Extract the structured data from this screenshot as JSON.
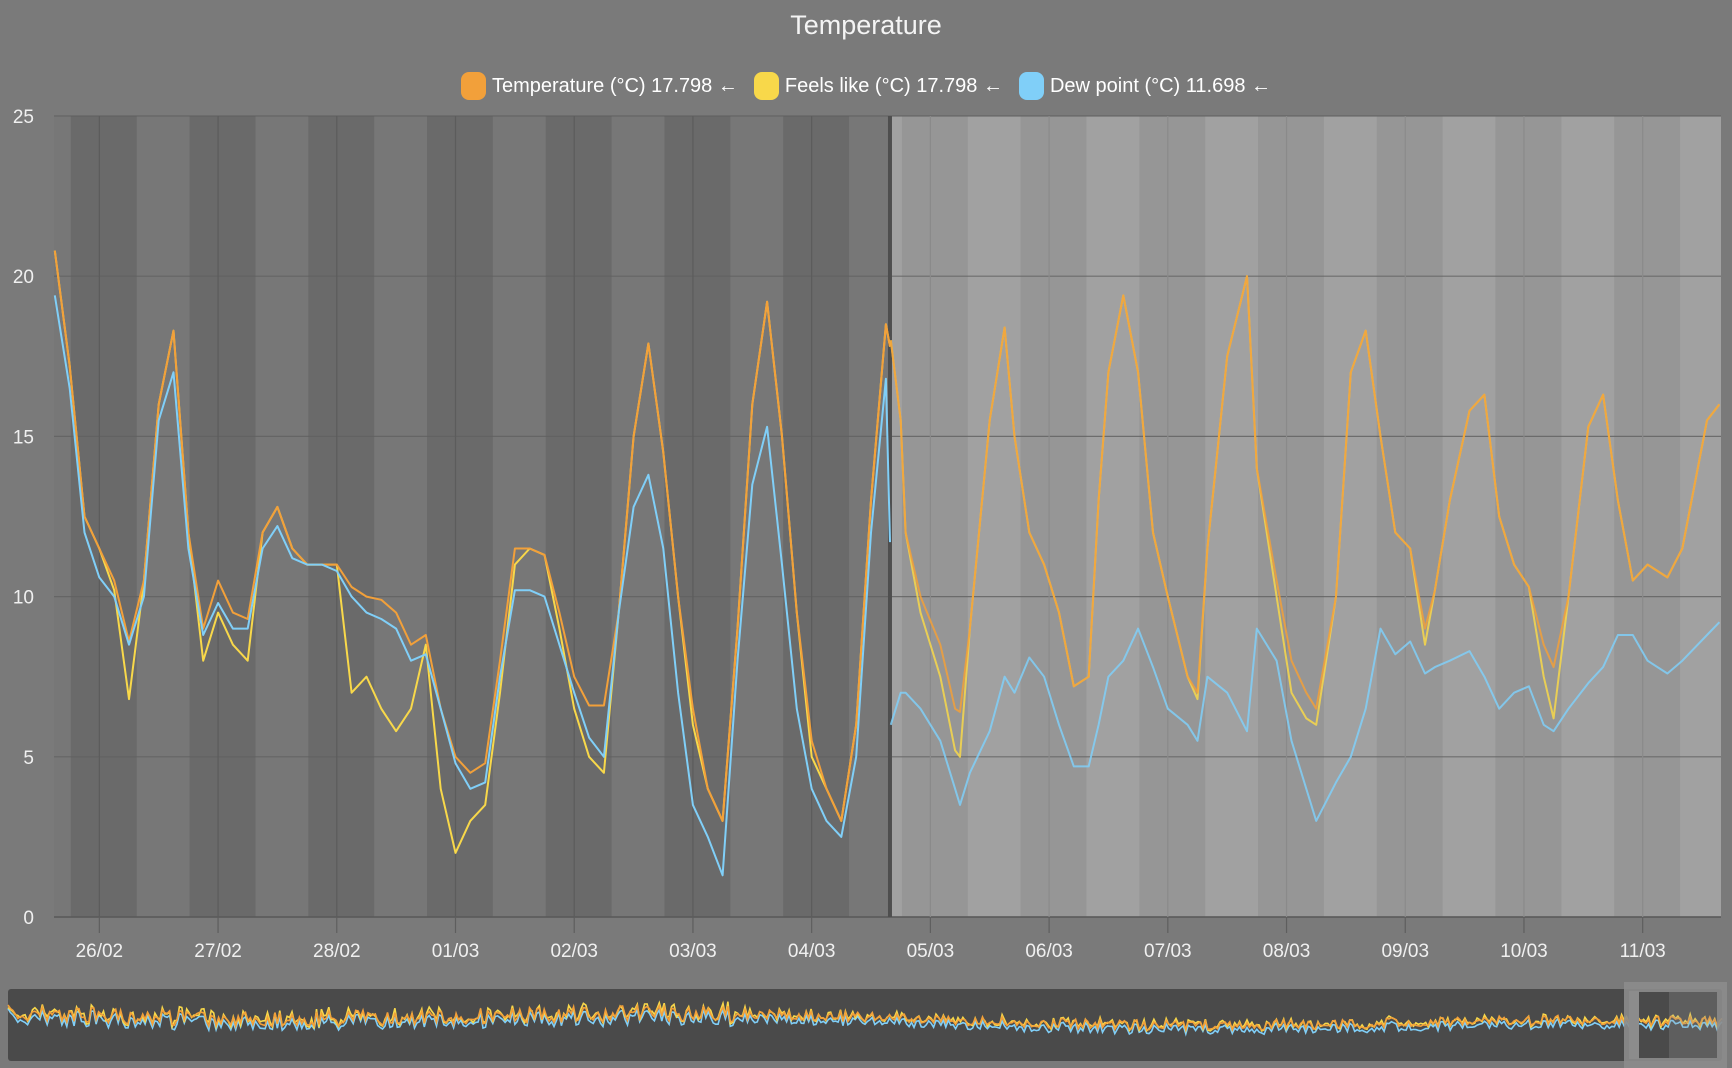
{
  "title": "Temperature",
  "legend": [
    {
      "label": "Temperature (°C) 17.798 ←",
      "color": "#f2a03a"
    },
    {
      "label": "Feels like (°C) 17.798 ←",
      "color": "#f8d84a"
    },
    {
      "label": "Dew point (°C) 11.698 ←",
      "color": "#80cff8"
    }
  ],
  "colors": {
    "background": "#7a7a7a",
    "past_day": "#777777",
    "past_night": "#6a6a6a",
    "forecast_day": "#a1a1a1",
    "forecast_night": "#969696",
    "now_line": "#4e4e4e",
    "navigator_bg": "#4a4a4a",
    "navigator_window": "#8c8c8c"
  },
  "chart_data": {
    "type": "line",
    "title": "Temperature",
    "ylim": [
      0,
      25
    ],
    "yticks": [
      "0",
      "5",
      "10",
      "15",
      "20",
      "25"
    ],
    "xlim": [
      "25/02 14:50",
      "11/03 15:50"
    ],
    "xticks": [
      "26/02",
      "27/02",
      "28/02",
      "01/03",
      "02/03",
      "03/03",
      "04/03",
      "05/03",
      "06/03",
      "07/03",
      "08/03",
      "09/03",
      "10/03",
      "11/03"
    ],
    "now": "04/03 15:50",
    "night_shading": true,
    "grid": true,
    "series_names": [
      "Temperature (°C)",
      "Feels like (°C)",
      "Dew point (°C)"
    ],
    "observed": [
      [
        "25/02 15:00",
        20.8,
        20.8,
        19.4
      ],
      [
        "25/02 18:00",
        17.2,
        17.2,
        16.5
      ],
      [
        "25/02 21:00",
        12.5,
        12.5,
        12.0
      ],
      [
        "26/02 00:00",
        11.5,
        11.5,
        10.6
      ],
      [
        "26/02 03:00",
        10.5,
        10.2,
        10.0
      ],
      [
        "26/02 06:00",
        8.6,
        6.8,
        8.5
      ],
      [
        "26/02 09:00",
        10.5,
        10.5,
        10.0
      ],
      [
        "26/02 12:00",
        16.0,
        16.0,
        15.5
      ],
      [
        "26/02 15:00",
        18.3,
        18.3,
        17.0
      ],
      [
        "26/02 18:00",
        12.0,
        12.0,
        11.5
      ],
      [
        "26/02 21:00",
        9.0,
        8.0,
        8.8
      ],
      [
        "27/02 00:00",
        10.5,
        9.5,
        9.8
      ],
      [
        "27/02 03:00",
        9.5,
        8.5,
        9.0
      ],
      [
        "27/02 06:00",
        9.3,
        8.0,
        9.0
      ],
      [
        "27/02 09:00",
        12.0,
        12.0,
        11.5
      ],
      [
        "27/02 12:00",
        12.8,
        12.8,
        12.2
      ],
      [
        "27/02 15:00",
        11.5,
        11.5,
        11.2
      ],
      [
        "27/02 18:00",
        11.0,
        11.0,
        11.0
      ],
      [
        "27/02 21:00",
        11.0,
        11.0,
        11.0
      ],
      [
        "28/02 00:00",
        11.0,
        11.0,
        10.8
      ],
      [
        "28/02 03:00",
        10.3,
        7.0,
        10.0
      ],
      [
        "28/02 06:00",
        10.0,
        7.5,
        9.5
      ],
      [
        "28/02 09:00",
        9.9,
        6.5,
        9.3
      ],
      [
        "28/02 12:00",
        9.5,
        5.8,
        9.0
      ],
      [
        "28/02 15:00",
        8.5,
        6.5,
        8.0
      ],
      [
        "28/02 18:00",
        8.8,
        8.5,
        8.2
      ],
      [
        "28/02 21:00",
        6.5,
        4.0,
        6.5
      ],
      [
        "01/03 00:00",
        5.0,
        2.0,
        4.8
      ],
      [
        "01/03 03:00",
        4.5,
        3.0,
        4.0
      ],
      [
        "01/03 06:00",
        4.8,
        3.5,
        4.2
      ],
      [
        "01/03 09:00",
        8.0,
        7.0,
        7.5
      ],
      [
        "01/03 12:00",
        11.5,
        11.0,
        10.2
      ],
      [
        "01/03 15:00",
        11.5,
        11.5,
        10.2
      ],
      [
        "01/03 18:00",
        11.3,
        11.3,
        10.0
      ],
      [
        "01/03 21:00",
        9.5,
        9.0,
        8.5
      ],
      [
        "02/03 00:00",
        7.5,
        6.5,
        7.0
      ],
      [
        "02/03 03:00",
        6.6,
        5.0,
        5.6
      ],
      [
        "02/03 06:00",
        6.6,
        4.5,
        5.0
      ],
      [
        "02/03 09:00",
        9.5,
        9.5,
        9.5
      ],
      [
        "02/03 12:00",
        15.0,
        15.0,
        12.8
      ],
      [
        "02/03 15:00",
        17.9,
        17.9,
        13.8
      ],
      [
        "02/03 18:00",
        14.5,
        14.5,
        11.5
      ],
      [
        "02/03 21:00",
        10.0,
        10.0,
        7.0
      ],
      [
        "03/03 00:00",
        6.5,
        6.0,
        3.5
      ],
      [
        "03/03 03:00",
        4.0,
        4.0,
        2.5
      ],
      [
        "03/03 06:00",
        3.0,
        3.0,
        1.3
      ],
      [
        "03/03 09:00",
        9.0,
        9.0,
        8.0
      ],
      [
        "03/03 12:00",
        16.0,
        16.0,
        13.5
      ],
      [
        "03/03 15:00",
        19.2,
        19.2,
        15.3
      ],
      [
        "03/03 18:00",
        15.0,
        15.0,
        11.0
      ],
      [
        "03/03 21:00",
        9.5,
        9.5,
        6.5
      ],
      [
        "04/03 00:00",
        5.5,
        5.0,
        4.0
      ],
      [
        "04/03 03:00",
        4.0,
        4.0,
        3.0
      ],
      [
        "04/03 06:00",
        3.0,
        3.0,
        2.5
      ],
      [
        "04/03 09:00",
        6.0,
        6.0,
        5.0
      ],
      [
        "04/03 12:00",
        13.0,
        13.0,
        12.0
      ],
      [
        "04/03 15:00",
        18.5,
        18.5,
        16.8
      ],
      [
        "04/03 15:50",
        17.8,
        17.8,
        11.7
      ]
    ],
    "forecast": [
      [
        "04/03 16:00",
        18.0,
        18.0,
        6.0
      ],
      [
        "04/03 18:00",
        15.5,
        15.5,
        7.0
      ],
      [
        "04/03 19:00",
        12.0,
        12.0,
        7.0
      ],
      [
        "04/03 22:00",
        10.0,
        9.5,
        6.5
      ],
      [
        "05/03 02:00",
        8.5,
        7.5,
        5.5
      ],
      [
        "05/03 05:00",
        6.5,
        5.2,
        4.0
      ],
      [
        "05/03 06:00",
        6.4,
        5.0,
        3.5
      ],
      [
        "05/03 08:00",
        9.0,
        9.0,
        4.5
      ],
      [
        "05/03 12:00",
        15.5,
        15.5,
        5.8
      ],
      [
        "05/03 15:00",
        18.4,
        18.4,
        7.5
      ],
      [
        "05/03 17:00",
        15.0,
        15.0,
        7.0
      ],
      [
        "05/03 20:00",
        12.0,
        12.0,
        8.1
      ],
      [
        "05/03 23:00",
        11.0,
        11.0,
        7.5
      ],
      [
        "06/03 02:00",
        9.5,
        9.5,
        6.0
      ],
      [
        "06/03 05:00",
        7.2,
        7.2,
        4.7
      ],
      [
        "06/03 08:00",
        7.5,
        7.5,
        4.7
      ],
      [
        "06/03 10:00",
        13.0,
        13.0,
        6.0
      ],
      [
        "06/03 12:00",
        17.0,
        17.0,
        7.5
      ],
      [
        "06/03 15:00",
        19.4,
        19.4,
        8.0
      ],
      [
        "06/03 18:00",
        17.0,
        17.0,
        9.0
      ],
      [
        "06/03 21:00",
        12.0,
        12.0,
        7.8
      ],
      [
        "07/03 00:00",
        10.0,
        10.0,
        6.5
      ],
      [
        "07/03 04:00",
        7.5,
        7.5,
        6.0
      ],
      [
        "07/03 06:00",
        7.0,
        6.8,
        5.5
      ],
      [
        "07/03 08:00",
        11.5,
        11.5,
        7.5
      ],
      [
        "07/03 12:00",
        17.5,
        17.5,
        7.0
      ],
      [
        "07/03 16:00",
        20.0,
        20.0,
        5.8
      ],
      [
        "07/03 18:00",
        14.0,
        14.0,
        9.0
      ],
      [
        "07/03 22:00",
        10.5,
        10.0,
        8.0
      ],
      [
        "08/03 01:00",
        8.0,
        7.0,
        5.5
      ],
      [
        "08/03 04:00",
        7.0,
        6.2,
        4.0
      ],
      [
        "08/03 06:00",
        6.5,
        6.0,
        3.0
      ],
      [
        "08/03 10:00",
        10.0,
        10.0,
        4.2
      ],
      [
        "08/03 13:00",
        17.0,
        17.0,
        5.0
      ],
      [
        "08/03 16:00",
        18.3,
        18.3,
        6.5
      ],
      [
        "08/03 19:00",
        15.0,
        15.0,
        9.0
      ],
      [
        "08/03 22:00",
        12.0,
        12.0,
        8.2
      ],
      [
        "09/03 01:00",
        11.5,
        11.5,
        8.6
      ],
      [
        "09/03 04:00",
        9.0,
        8.5,
        7.6
      ],
      [
        "09/03 06:00",
        10.2,
        10.2,
        7.8
      ],
      [
        "09/03 09:00",
        13.0,
        13.0,
        8.0
      ],
      [
        "09/03 13:00",
        15.8,
        15.8,
        8.3
      ],
      [
        "09/03 16:00",
        16.3,
        16.3,
        7.5
      ],
      [
        "09/03 19:00",
        12.5,
        12.5,
        6.5
      ],
      [
        "09/03 22:00",
        11.0,
        11.0,
        7.0
      ],
      [
        "10/03 01:00",
        10.3,
        10.3,
        7.2
      ],
      [
        "10/03 04:00",
        8.5,
        7.5,
        6.0
      ],
      [
        "10/03 06:00",
        7.8,
        6.2,
        5.8
      ],
      [
        "10/03 09:00",
        10.0,
        10.0,
        6.5
      ],
      [
        "10/03 13:00",
        15.3,
        15.3,
        7.3
      ],
      [
        "10/03 16:00",
        16.3,
        16.3,
        7.8
      ],
      [
        "10/03 19:00",
        13.0,
        13.0,
        8.8
      ],
      [
        "10/03 22:00",
        10.5,
        10.5,
        8.8
      ],
      [
        "11/03 01:00",
        11.0,
        11.0,
        8.0
      ],
      [
        "11/03 05:00",
        10.6,
        10.6,
        7.6
      ],
      [
        "11/03 08:00",
        11.5,
        11.5,
        8.0
      ],
      [
        "11/03 13:00",
        15.5,
        15.5,
        8.8
      ],
      [
        "11/03 15:30",
        16.0,
        16.0,
        9.2
      ]
    ]
  }
}
